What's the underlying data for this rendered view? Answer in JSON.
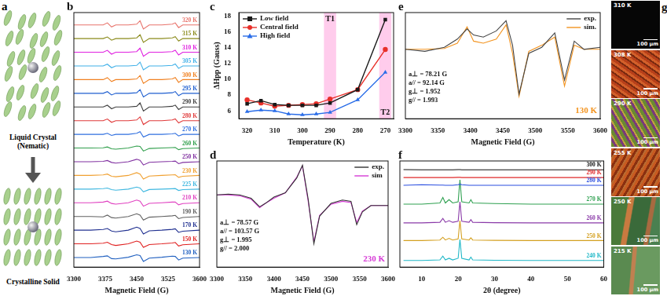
{
  "diagram": {
    "panel_label": "a",
    "states": [
      {
        "label": [
          "Liquid Crystal",
          "(Nematic)"
        ]
      },
      {
        "label": [
          "Crystalline Solid"
        ]
      }
    ]
  },
  "chart_data": [
    {
      "panel_label": "b",
      "type": "line",
      "x_label": "Magnetic Field (G)",
      "x": [
        3300,
        3340,
        3370,
        3380,
        3390,
        3400,
        3430,
        3450,
        3458,
        3466,
        3480,
        3510,
        3535,
        3542,
        3550,
        3560,
        3600
      ],
      "xlim": [
        3300,
        3600
      ],
      "xticks": [
        3300,
        3375,
        3450,
        3525,
        3600
      ],
      "ylim": [
        0.3,
        18.9
      ],
      "tick_labels": "x",
      "grid": false,
      "legend": "inline",
      "series": [
        {
          "name": "320 K",
          "color": "#e8736b",
          "values": [
            18,
            18,
            18,
            18.15,
            17.85,
            18,
            18,
            18.05,
            18.3,
            17.7,
            18,
            18,
            18.05,
            18.15,
            17.8,
            18,
            18
          ]
        },
        {
          "name": "315 K",
          "color": "#8a8a1a",
          "values": [
            17,
            17,
            17,
            17.12,
            16.88,
            17,
            17,
            17.05,
            17.28,
            16.72,
            17,
            17,
            17.05,
            17.14,
            16.82,
            17,
            17
          ]
        },
        {
          "name": "310 K",
          "color": "#e020e0",
          "values": [
            16,
            16,
            16,
            16.14,
            15.86,
            16,
            16,
            16.05,
            16.3,
            15.7,
            16,
            16,
            16.05,
            16.15,
            15.8,
            16,
            16
          ]
        },
        {
          "name": "305 K",
          "color": "#3fb0e8",
          "values": [
            15,
            15,
            15,
            15.13,
            14.87,
            15,
            15,
            15.04,
            15.28,
            14.72,
            15,
            15,
            15.04,
            15.14,
            14.82,
            15,
            15
          ]
        },
        {
          "name": "300 K",
          "color": "#f08020",
          "values": [
            14,
            14,
            14,
            14.14,
            13.86,
            14,
            14,
            14.05,
            14.3,
            13.72,
            14,
            14,
            14.05,
            14.15,
            13.8,
            14,
            14
          ]
        },
        {
          "name": "295 K",
          "color": "#1f5fd0",
          "values": [
            13,
            13,
            13,
            13.12,
            12.88,
            13,
            13,
            13.04,
            13.27,
            12.74,
            13,
            13,
            13.04,
            13.13,
            12.83,
            13,
            13
          ]
        },
        {
          "name": "290 K",
          "color": "#404040",
          "values": [
            12,
            12,
            12,
            12.13,
            11.87,
            12,
            12,
            12.05,
            12.3,
            11.7,
            12,
            12,
            12.05,
            12.14,
            11.82,
            12,
            12
          ]
        },
        {
          "name": "280 K",
          "color": "#e03a3a",
          "values": [
            11,
            11,
            11,
            11.12,
            10.88,
            11,
            11,
            11.05,
            11.28,
            10.72,
            11,
            11,
            11.05,
            11.13,
            10.84,
            11,
            11
          ]
        },
        {
          "name": "270 K",
          "color": "#2f6fdf",
          "values": [
            10,
            10,
            10,
            10.08,
            9.92,
            10,
            10,
            10.08,
            10.2,
            9.8,
            10,
            10,
            10.04,
            10.08,
            9.88,
            10,
            10
          ]
        },
        {
          "name": "260 K",
          "color": "#2e9e4a",
          "values": [
            9,
            9,
            9.02,
            9.08,
            8.95,
            8.92,
            9,
            9.15,
            9.12,
            8.78,
            8.97,
            9,
            9.03,
            9.04,
            8.88,
            8.96,
            9
          ]
        },
        {
          "name": "250 K",
          "color": "#8030a0",
          "values": [
            8,
            8,
            8.03,
            8.09,
            7.95,
            7.9,
            8,
            8.18,
            8.1,
            7.76,
            7.96,
            8,
            8.03,
            8.05,
            7.86,
            7.95,
            8
          ]
        },
        {
          "name": "230 K",
          "color": "#f0a030",
          "values": [
            7,
            7,
            7.04,
            7.1,
            6.94,
            6.9,
            7,
            7.2,
            7.1,
            6.74,
            6.95,
            7,
            7.04,
            7.05,
            6.86,
            6.94,
            7
          ]
        },
        {
          "name": "225 K",
          "color": "#40b8e0",
          "values": [
            6,
            6,
            6.03,
            6.08,
            5.96,
            5.92,
            6,
            6.15,
            6.08,
            5.8,
            5.97,
            6,
            6.03,
            6.04,
            5.9,
            5.96,
            6
          ]
        },
        {
          "name": "210 K",
          "color": "#e040c0",
          "values": [
            5,
            5,
            5.05,
            5.12,
            4.95,
            4.9,
            5,
            5.2,
            5.12,
            4.75,
            4.96,
            5,
            5.05,
            5.06,
            4.85,
            4.94,
            5
          ]
        },
        {
          "name": "190 K",
          "color": "#606060",
          "values": [
            4,
            4,
            3.97,
            4.1,
            3.92,
            3.88,
            4,
            4.2,
            4.1,
            3.74,
            3.95,
            4,
            4.05,
            4.08,
            3.84,
            3.93,
            4
          ]
        },
        {
          "name": "170 K",
          "color": "#203090",
          "values": [
            3,
            3,
            3.05,
            3.12,
            2.94,
            2.88,
            3,
            3.22,
            3.12,
            2.72,
            2.95,
            3,
            3.06,
            3.1,
            2.84,
            2.92,
            3
          ]
        },
        {
          "name": "150 K",
          "color": "#e02020",
          "values": [
            2,
            2,
            2.05,
            2.12,
            1.95,
            1.88,
            2,
            2.2,
            2.12,
            1.74,
            1.95,
            2,
            2.06,
            2.1,
            1.84,
            1.93,
            2
          ]
        },
        {
          "name": "130 K",
          "color": "#2060c0",
          "values": [
            1,
            1,
            1.08,
            1.12,
            0.92,
            0.9,
            1.02,
            1.2,
            1.15,
            0.72,
            0.96,
            1.02,
            1.1,
            1.08,
            0.82,
            0.96,
            1
          ]
        }
      ]
    },
    {
      "panel_label": "c",
      "type": "line",
      "x_label": "Temperature (K)",
      "y_label": "ΔHpp (Gauss)",
      "x": [
        320,
        315,
        310,
        305,
        300,
        295,
        290,
        280,
        270
      ],
      "xlim": [
        323,
        267
      ],
      "xticks": [
        320,
        310,
        300,
        290,
        280,
        270
      ],
      "ylim": [
        5,
        18.5
      ],
      "yticks": [
        6,
        8,
        10,
        12,
        14,
        16,
        18
      ],
      "grid": false,
      "legend": "upper left",
      "annotations": [
        {
          "text": "T1",
          "x": 290
        },
        {
          "text": "T2",
          "x": 270
        }
      ],
      "series": [
        {
          "name": "Low field",
          "color": "#1a1a1a",
          "marker": "square",
          "line_style": "solid",
          "values": [
            6.9,
            7.3,
            6.8,
            6.7,
            6.7,
            6.7,
            7.0,
            8.7,
            17.6
          ]
        },
        {
          "name": "Central field",
          "color": "#e8302a",
          "marker": "circle",
          "line_style": "solid",
          "values": [
            7.4,
            7.0,
            6.6,
            6.7,
            6.8,
            6.9,
            7.5,
            8.7,
            13.8
          ]
        },
        {
          "name": "High field",
          "color": "#2a6de8",
          "marker": "triangle",
          "line_style": "solid",
          "values": [
            5.9,
            6.1,
            6.0,
            5.6,
            5.5,
            5.6,
            5.8,
            7.4,
            10.9
          ]
        }
      ]
    },
    {
      "panel_label": "d",
      "type": "line",
      "title": "230 K",
      "x_label": "Magnetic Field (G)",
      "x": [
        3300,
        3320,
        3340,
        3360,
        3375,
        3385,
        3400,
        3420,
        3440,
        3450,
        3460,
        3470,
        3480,
        3500,
        3520,
        3535,
        3545,
        3555,
        3570,
        3600
      ],
      "xlim": [
        3300,
        3600
      ],
      "xticks": [
        3300,
        3350,
        3400,
        3450,
        3500,
        3550,
        3600
      ],
      "ylim": [
        -1.4,
        1.1
      ],
      "tick_labels": "x",
      "grid": false,
      "legend": "upper right",
      "annotations": [
        {
          "text": "a⊥ = 78.57 G"
        },
        {
          "text": "a// = 103.57 G"
        },
        {
          "text": "g⊥ = 1.995"
        },
        {
          "text": "g// = 2.000"
        }
      ],
      "series": [
        {
          "name": "exp.",
          "color": "#333333",
          "marker": "none",
          "line_style": "solid",
          "values": [
            0.3,
            0.32,
            0.3,
            0.22,
            0.02,
            0.1,
            0.25,
            0.35,
            0.7,
            1.0,
            0.2,
            -0.85,
            -0.2,
            0.1,
            0.18,
            0.15,
            -0.4,
            -0.1,
            0.05,
            0.05
          ]
        },
        {
          "name": "sim",
          "color": "#d63ad6",
          "marker": "none",
          "line_style": "solid",
          "values": [
            0.3,
            0.3,
            0.28,
            0.2,
            0.0,
            0.1,
            0.22,
            0.35,
            0.72,
            0.98,
            0.15,
            -0.8,
            -0.18,
            0.08,
            0.15,
            0.12,
            -0.35,
            -0.08,
            0.05,
            0.05
          ]
        }
      ]
    },
    {
      "panel_label": "e",
      "type": "line",
      "title": "130 K",
      "x_label": "Magnetic Field (G)",
      "x": [
        3300,
        3330,
        3360,
        3380,
        3395,
        3405,
        3420,
        3440,
        3455,
        3465,
        3475,
        3490,
        3510,
        3530,
        3545,
        3560,
        3575,
        3600
      ],
      "xlim": [
        3300,
        3600
      ],
      "xticks": [
        3300,
        3350,
        3400,
        3450,
        3500,
        3550,
        3600
      ],
      "ylim": [
        -1.5,
        1.1
      ],
      "tick_labels": "x",
      "grid": false,
      "legend": "upper right",
      "annotations": [
        {
          "text": "a⊥ = 78.21 G"
        },
        {
          "text": "a// = 92.14 G"
        },
        {
          "text": "g⊥ = 1.952"
        },
        {
          "text": "g// = 1.993"
        }
      ],
      "series": [
        {
          "name": "exp.",
          "color": "#444444",
          "marker": "none",
          "line_style": "solid",
          "values": [
            0.2,
            0.15,
            0.25,
            0.45,
            0.7,
            0.55,
            0.5,
            0.65,
            0.9,
            0.3,
            -0.9,
            0.1,
            0.25,
            0.6,
            -0.55,
            0.4,
            0.2,
            0.25
          ]
        },
        {
          "name": "sim.",
          "color": "#f39420",
          "marker": "none",
          "line_style": "solid",
          "values": [
            0.2,
            0.2,
            0.22,
            0.35,
            0.75,
            0.4,
            0.35,
            0.45,
            0.8,
            0.1,
            -0.95,
            0.15,
            0.3,
            0.5,
            -0.7,
            0.3,
            0.2,
            0.2
          ]
        }
      ]
    },
    {
      "panel_label": "f",
      "type": "line",
      "x_label": "2θ (degree)",
      "x": [
        5,
        10,
        15,
        15.8,
        16.5,
        17.5,
        18.5,
        20,
        20.5,
        21,
        23,
        23.5,
        24,
        30,
        40,
        50,
        60
      ],
      "xlim": [
        4,
        60
      ],
      "xticks": [
        10,
        20,
        30,
        40,
        50,
        60
      ],
      "ylim": [
        0.8,
        10.4
      ],
      "tick_labels": "x",
      "grid": false,
      "legend": "inline",
      "series": [
        {
          "name": "300 K",
          "color": "#111111",
          "values": [
            9.62,
            9.6,
            9.6,
            9.6,
            9.6,
            9.6,
            9.6,
            9.62,
            9.62,
            9.6,
            9.6,
            9.6,
            9.6,
            9.6,
            9.6,
            9.6,
            9.6
          ]
        },
        {
          "name": "290 K",
          "color": "#e02a2a",
          "values": [
            8.9,
            8.9,
            8.9,
            8.9,
            8.9,
            8.9,
            8.9,
            8.92,
            8.92,
            8.9,
            8.9,
            8.9,
            8.9,
            8.9,
            8.9,
            8.9,
            8.9
          ]
        },
        {
          "name": "280 K",
          "color": "#2a4ee0",
          "values": [
            8.2,
            8.25,
            8.22,
            8.22,
            8.2,
            8.2,
            8.2,
            8.25,
            8.3,
            8.25,
            8.2,
            8.2,
            8.2,
            8.2,
            8.2,
            8.2,
            8.2
          ]
        },
        {
          "name": "270 K",
          "color": "#2ea050",
          "values": [
            6.5,
            6.5,
            6.6,
            7.1,
            6.6,
            6.9,
            6.6,
            6.7,
            8.7,
            6.7,
            6.6,
            6.9,
            6.6,
            6.55,
            6.5,
            6.5,
            6.5
          ]
        },
        {
          "name": "260 K",
          "color": "#8a3aa8",
          "values": [
            4.8,
            4.8,
            4.85,
            5.2,
            4.85,
            5.0,
            4.85,
            4.95,
            6.7,
            4.95,
            4.85,
            5.1,
            4.85,
            4.82,
            4.8,
            4.8,
            4.8
          ]
        },
        {
          "name": "250 K",
          "color": "#d4a020",
          "values": [
            3.2,
            3.2,
            3.25,
            3.5,
            3.25,
            3.4,
            3.25,
            3.35,
            5.0,
            3.35,
            3.25,
            3.45,
            3.25,
            3.22,
            3.2,
            3.2,
            3.2
          ]
        },
        {
          "name": "240 K",
          "color": "#20b8c8",
          "values": [
            1.4,
            1.4,
            1.45,
            1.8,
            1.45,
            1.6,
            1.45,
            1.6,
            3.3,
            1.6,
            1.45,
            1.7,
            1.45,
            1.42,
            1.4,
            1.4,
            1.4
          ]
        }
      ]
    }
  ],
  "micrographs": {
    "panel_label": "g",
    "images": [
      {
        "temperature": "310 K",
        "scale_bar": "100 μm"
      },
      {
        "temperature": "308 K",
        "scale_bar": "100 μm"
      },
      {
        "temperature": "290 K",
        "scale_bar": "100 μm"
      },
      {
        "temperature": "255 K",
        "scale_bar": "100 μm"
      },
      {
        "temperature": "250 K",
        "scale_bar": "100 μm"
      },
      {
        "temperature": "215 K",
        "scale_bar": "100 μm"
      }
    ]
  }
}
